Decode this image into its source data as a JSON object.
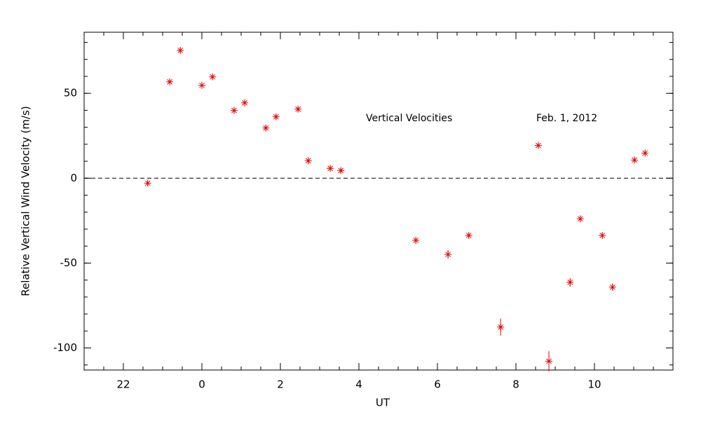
{
  "chart_data": {
    "type": "scatter",
    "xlabel": "UT",
    "ylabel": "Relative Vertical Wind Velocity (m/s)",
    "annotations": [
      "Vertical Velocities",
      "Feb. 1, 2012"
    ],
    "x": [
      -1.38,
      -0.82,
      -0.55,
      0.0,
      0.27,
      0.82,
      1.09,
      1.63,
      1.89,
      2.45,
      2.71,
      3.27,
      3.54,
      5.45,
      6.27,
      6.8,
      7.61,
      8.57,
      8.84,
      9.38,
      9.64,
      10.2,
      10.46,
      11.02,
      11.29
    ],
    "series": [
      {
        "color": "#e60000",
        "values": [
          -2.9,
          56.8,
          75.3,
          54.7,
          59.7,
          39.9,
          44.4,
          29.6,
          36.2,
          40.7,
          10.3,
          5.8,
          4.5,
          -36.6,
          -44.9,
          -33.7,
          -87.7,
          19.3,
          -107.8,
          -61.3,
          -23.9,
          -33.7,
          -64.2,
          10.7,
          14.8
        ],
        "errors": [
          1.5,
          1.5,
          1.5,
          1.5,
          1.5,
          1.5,
          1.5,
          1.5,
          1.5,
          1.5,
          1.5,
          1.5,
          1.5,
          1.5,
          2.5,
          1.5,
          5,
          1.5,
          6,
          2.5,
          1.5,
          1.5,
          2,
          1.5,
          1.5
        ]
      }
    ],
    "xlim": [
      -3,
      12
    ],
    "ylim": [
      -113,
      86
    ],
    "xticks": [
      {
        "value": -2,
        "label": "22"
      },
      0,
      2,
      4,
      6,
      8,
      10
    ],
    "yticks": [
      -100,
      -50,
      0,
      50
    ],
    "xminor": 0.5,
    "yminor": 10,
    "reference_line": 0
  }
}
